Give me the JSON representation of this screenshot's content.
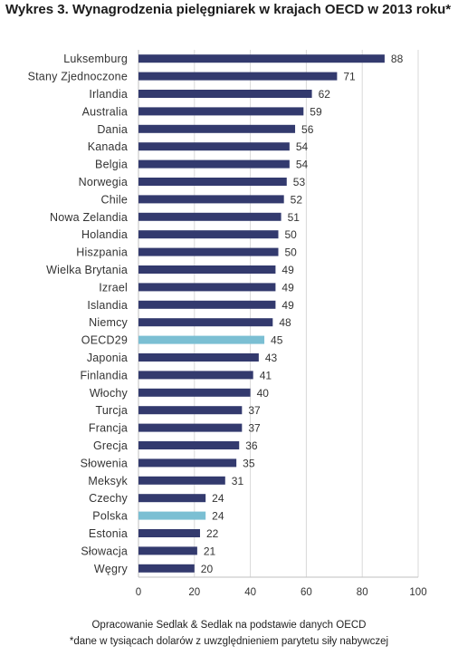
{
  "chart_data": {
    "type": "bar",
    "orientation": "horizontal",
    "title": "Wykres 3. Wynagrodzenia pielęgniarek w krajach OECD w 2013 roku*",
    "categories": [
      "Luksemburg",
      "Stany Zjednoczone",
      "Irlandia",
      "Australia",
      "Dania",
      "Kanada",
      "Belgia",
      "Norwegia",
      "Chile",
      "Nowa Zelandia",
      "Holandia",
      "Hiszpania",
      "Wielka Brytania",
      "Izrael",
      "Islandia",
      "Niemcy",
      "OECD29",
      "Japonia",
      "Finlandia",
      "Włochy",
      "Turcja",
      "Francja",
      "Grecja",
      "Słowenia",
      "Meksyk",
      "Czechy",
      "Polska",
      "Estonia",
      "Słowacja",
      "Węgry"
    ],
    "values": [
      88,
      71,
      62,
      59,
      56,
      54,
      54,
      53,
      52,
      51,
      50,
      50,
      49,
      49,
      49,
      48,
      45,
      43,
      41,
      40,
      37,
      37,
      36,
      35,
      31,
      24,
      24,
      22,
      21,
      20
    ],
    "highlighted": [
      "OECD29",
      "Polska"
    ],
    "xlim": [
      0,
      100
    ],
    "xticks": [
      0,
      20,
      40,
      60,
      80,
      100
    ],
    "grid": true,
    "colors": {
      "bar": "#333a6e",
      "highlight": "#7bbfd3",
      "grid": "#d9d9d9"
    },
    "source": "Opracowanie Sedlak & Sedlak na podstawie danych OECD",
    "note": "*dane w tysiącach dolarów z uwzględnieniem parytetu siły nabywczej"
  }
}
